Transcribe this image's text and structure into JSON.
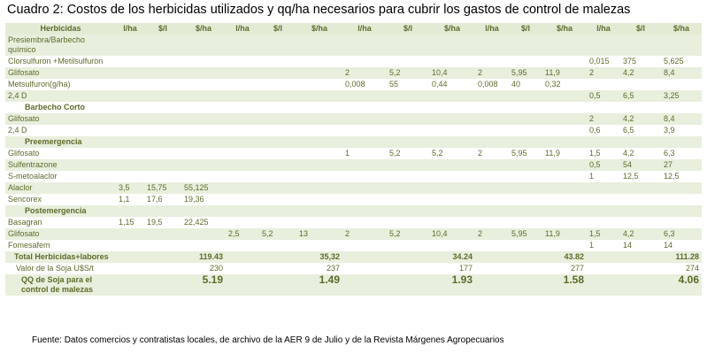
{
  "title": "Cuadro 2: Costos de los herbicidas utilizados y qq/ha necesarios para cubrir los gastos de control de malezas",
  "table": {
    "header": [
      "Herbicidas",
      "l/ha",
      "$/l",
      "$/ha",
      "l/ha",
      "$/l",
      "$/ha",
      "l/ha",
      "$/l",
      "$/ha",
      "l/ha",
      "$/l",
      "$/ha",
      "l/ha",
      "$/l",
      "$/ha"
    ],
    "rows": [
      [
        "Presiembra/Barbecho químico",
        null,
        null,
        null,
        null,
        null,
        null,
        null,
        null,
        null,
        null,
        null,
        null,
        null,
        null,
        null
      ],
      [
        "Clorsulfuron +Metilsulfuron",
        null,
        null,
        null,
        null,
        null,
        null,
        null,
        null,
        null,
        null,
        null,
        null,
        "0,015",
        "375",
        "5,625"
      ],
      [
        "Glifosato",
        null,
        null,
        null,
        null,
        null,
        null,
        "2",
        "5,2",
        "10,4",
        "2",
        "5,95",
        "11,9",
        "2",
        "4,2",
        "8,4"
      ],
      [
        "Metsulfuron(g/ha)",
        null,
        null,
        null,
        null,
        null,
        null,
        "0,008",
        "55",
        "0,44",
        "0,008",
        "40",
        "0,32",
        null,
        null,
        null
      ],
      [
        "2,4 D",
        null,
        null,
        null,
        null,
        null,
        null,
        null,
        null,
        null,
        null,
        null,
        null,
        "0,5",
        "6,5",
        "3,25"
      ],
      {
        "section": "Barbecho Corto"
      },
      [
        "Glifosato",
        null,
        null,
        null,
        null,
        null,
        null,
        null,
        null,
        null,
        null,
        null,
        null,
        "2",
        "4,2",
        "8,4"
      ],
      [
        "2,4 D",
        null,
        null,
        null,
        null,
        null,
        null,
        null,
        null,
        null,
        null,
        null,
        null,
        "0,6",
        "6,5",
        "3,9"
      ],
      {
        "section": "Preemergencia"
      },
      [
        "Glifosato",
        null,
        null,
        null,
        null,
        null,
        null,
        "1",
        "5,2",
        "5,2",
        "2",
        "5,95",
        "11,9",
        "1,5",
        "4,2",
        "6,3"
      ],
      [
        "Sulfentrazone",
        null,
        null,
        null,
        null,
        null,
        null,
        null,
        null,
        null,
        null,
        null,
        null,
        "0,5",
        "54",
        "27"
      ],
      [
        "S-metoalaclor",
        null,
        null,
        null,
        null,
        null,
        null,
        null,
        null,
        null,
        null,
        null,
        null,
        "1",
        "12,5",
        "12,5"
      ],
      [
        "Alaclor",
        "3,5",
        "15,75",
        "55,125",
        null,
        null,
        null,
        null,
        null,
        null,
        null,
        null,
        null,
        null,
        null,
        null
      ],
      [
        "Sencorex",
        "1,1",
        "17,6",
        "19,36",
        null,
        null,
        null,
        null,
        null,
        null,
        null,
        null,
        null,
        null,
        null,
        null
      ],
      {
        "section": "Postemergencia"
      },
      [
        "Basagran",
        "1,15",
        "19,5",
        "22,425",
        null,
        null,
        null,
        null,
        null,
        null,
        null,
        null,
        null,
        null,
        null,
        null
      ],
      [
        "Glifosato",
        null,
        null,
        null,
        "2,5",
        "5,2",
        "13",
        "2",
        "5,2",
        "10,4",
        "2",
        "5,95",
        "11,9",
        "1,5",
        "4,2",
        "6,3"
      ],
      [
        "Fomesafem",
        null,
        null,
        null,
        null,
        null,
        null,
        null,
        null,
        null,
        null,
        null,
        null,
        "1",
        "14",
        "14"
      ],
      [
        "Total Herbicidas+labores",
        null,
        null,
        "119.43",
        null,
        null,
        "35,32",
        null,
        null,
        "34.24",
        null,
        null,
        "43.82",
        null,
        null,
        "111.28"
      ],
      [
        "Valor de la Soja U$S/t",
        null,
        null,
        "230",
        null,
        null,
        "237",
        null,
        null,
        "177",
        null,
        null,
        "277",
        null,
        null,
        "274"
      ],
      [
        "QQ de Soja para el control de malezas",
        null,
        null,
        "5.19",
        null,
        null,
        "1.49",
        null,
        null,
        "1.93",
        null,
        null,
        "1.58",
        null,
        null,
        "4.06"
      ]
    ]
  },
  "footer": "Fuente: Datos comercios y contratistas locales, de archivo de la AER 9 de Julio y de la Revista Márgenes Agropecuarios"
}
